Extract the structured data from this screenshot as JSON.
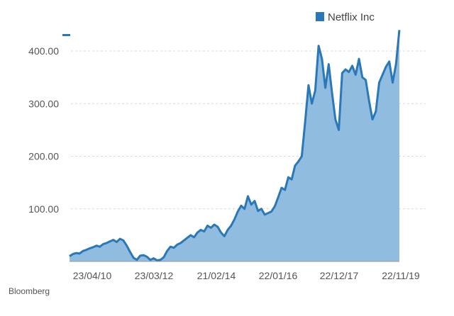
{
  "chart_data": {
    "type": "area",
    "title": "",
    "xlabel": "",
    "ylabel": "",
    "ylim": [
      0,
      440
    ],
    "y_ticks": [
      100,
      200,
      300,
      400
    ],
    "y_tick_labels": [
      "100.00",
      "200.00",
      "300.00",
      "400.00"
    ],
    "x_tick_labels": [
      "23/04/10",
      "23/03/12",
      "21/02/14",
      "22/01/16",
      "22/12/17",
      "22/11/19"
    ],
    "grid": true,
    "legend": {
      "position": "top-right",
      "entries": [
        "Netflix Inc"
      ]
    },
    "series": [
      {
        "name": "Netflix Inc",
        "color": "#2b78b8",
        "fill": "#8fbcdf",
        "values": [
          10,
          14,
          16,
          15,
          20,
          22,
          25,
          27,
          30,
          28,
          33,
          35,
          38,
          41,
          37,
          43,
          40,
          30,
          18,
          7,
          3,
          11,
          12,
          9,
          3,
          6,
          2,
          3,
          8,
          20,
          28,
          26,
          32,
          35,
          40,
          45,
          50,
          46,
          55,
          60,
          57,
          68,
          64,
          70,
          66,
          55,
          48,
          60,
          68,
          80,
          95,
          106,
          100,
          124,
          108,
          115,
          96,
          100,
          89,
          92,
          95,
          105,
          122,
          140,
          136,
          160,
          156,
          182,
          190,
          200,
          265,
          335,
          300,
          325,
          410,
          385,
          330,
          375,
          320,
          270,
          250,
          358,
          365,
          360,
          372,
          355,
          385,
          350,
          345,
          305,
          270,
          285,
          340,
          355,
          370,
          380,
          340,
          375,
          440
        ]
      }
    ],
    "source": "Bloomberg"
  },
  "colors": {
    "line": "#2b78b8",
    "fill": "#8fbcdf",
    "grid": "#d9d9d9",
    "axis": "#9a9a9a"
  }
}
